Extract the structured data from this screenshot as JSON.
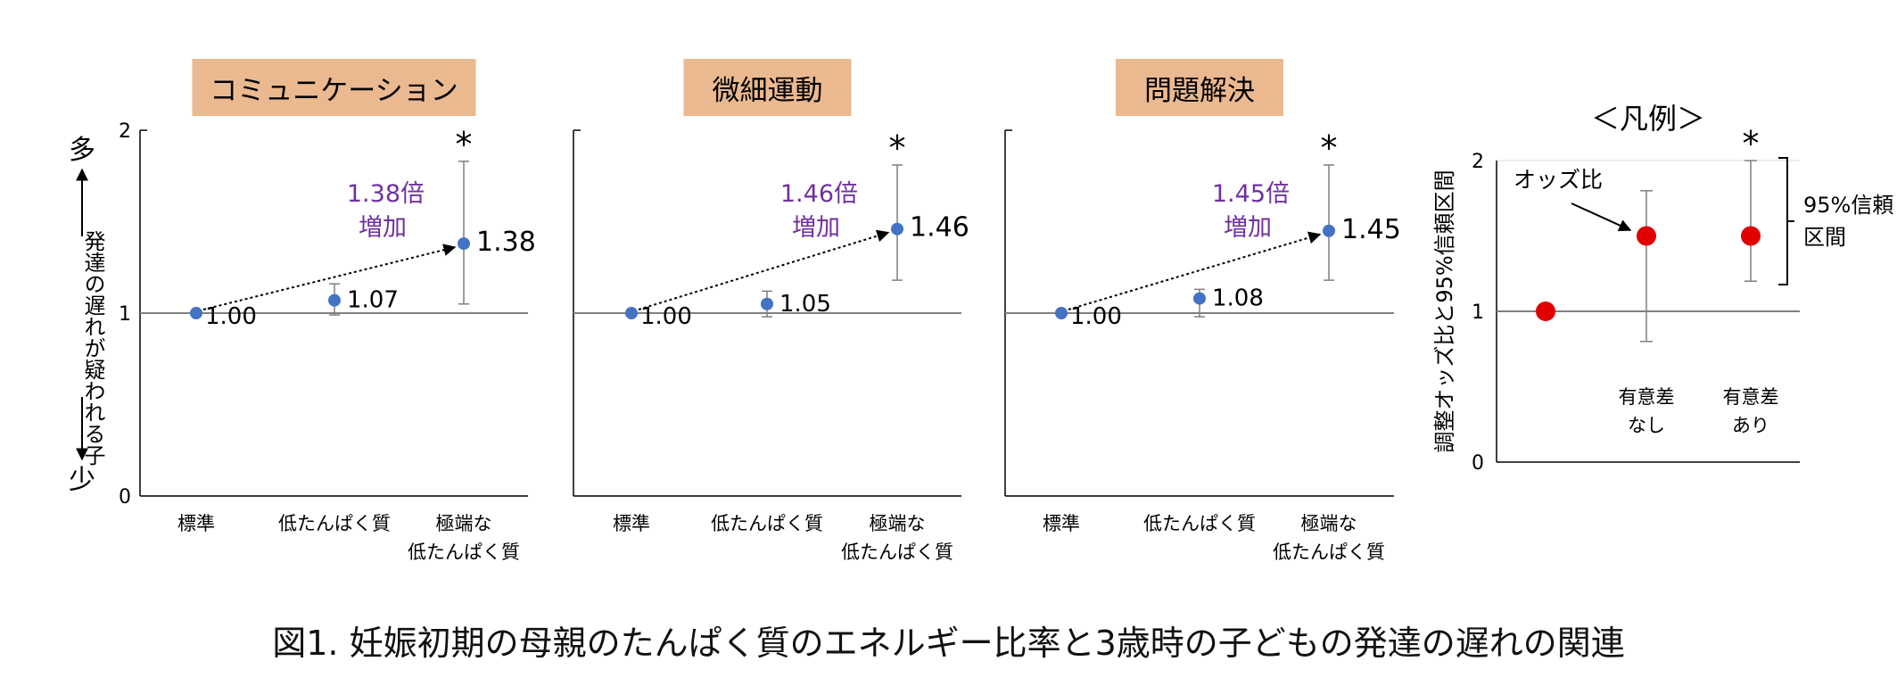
{
  "figure_title": "図1. 妊娠初期の母親のたんぱく質のエネルギー比率と3歳時の子どもの発達の遅れの関連",
  "colors": {
    "title_box": "#ebb98f",
    "point": "#4472c4",
    "annotation": "#7030a0",
    "legend_point": "#e00000",
    "axis": "#000000",
    "ref_line": "#808080",
    "errorbar": "#7f7f7f"
  },
  "y_axis_side": {
    "top_label": "多",
    "bottom_label": "少",
    "middle_label": "発達の遅れが疑われる子"
  },
  "chart_data": [
    {
      "type": "scatter",
      "title": "コミュニケーション",
      "categories": [
        "標準",
        "低たんぱく質",
        "極端な\n低たんぱく質"
      ],
      "values": [
        1.0,
        1.07,
        1.38
      ],
      "ci_upper": [
        null,
        1.16,
        1.83
      ],
      "ci_lower": [
        null,
        0.99,
        1.05
      ],
      "value_labels": [
        "1.00",
        "1.07",
        "1.38"
      ],
      "significance": [
        false,
        false,
        true
      ],
      "annotation": {
        "line1": "1.38倍",
        "line2": "増加"
      },
      "ylim": [
        0,
        2
      ],
      "y_ticks": [
        "0",
        "1",
        "2"
      ],
      "reference_line": 1
    },
    {
      "type": "scatter",
      "title": "微細運動",
      "categories": [
        "標準",
        "低たんぱく質",
        "極端な\n低たんぱく質"
      ],
      "values": [
        1.0,
        1.05,
        1.46
      ],
      "ci_upper": [
        null,
        1.12,
        1.81
      ],
      "ci_lower": [
        null,
        0.98,
        1.18
      ],
      "value_labels": [
        "1.00",
        "1.05",
        "1.46"
      ],
      "significance": [
        false,
        false,
        true
      ],
      "annotation": {
        "line1": "1.46倍",
        "line2": "増加"
      },
      "ylim": [
        0,
        2
      ],
      "y_ticks": [],
      "reference_line": 1
    },
    {
      "type": "scatter",
      "title": "問題解決",
      "categories": [
        "標準",
        "低たんぱく質",
        "極端な\n低たんぱく質"
      ],
      "values": [
        1.0,
        1.08,
        1.45
      ],
      "ci_upper": [
        null,
        1.13,
        1.81
      ],
      "ci_lower": [
        null,
        0.98,
        1.18
      ],
      "value_labels": [
        "1.00",
        "1.08",
        "1.45"
      ],
      "significance": [
        false,
        false,
        true
      ],
      "annotation": {
        "line1": "1.45倍",
        "line2": "増加"
      },
      "ylim": [
        0,
        2
      ],
      "y_ticks": [],
      "reference_line": 1
    },
    {
      "type": "scatter",
      "title": "＜凡例＞",
      "ylabel": "調整オッズ比と95%信頼区間",
      "categories": [
        "",
        "有意差\nなし",
        "有意差\nあり"
      ],
      "values": [
        1.0,
        1.5,
        1.5
      ],
      "ci_upper": [
        null,
        1.8,
        2.0
      ],
      "ci_lower": [
        null,
        0.8,
        1.2
      ],
      "significance": [
        false,
        false,
        true
      ],
      "ylim": [
        0,
        2
      ],
      "y_ticks": [
        "0",
        "1",
        "2"
      ],
      "reference_line": 1,
      "labels": {
        "odds_ratio": "オッズ比",
        "ci_line1": "95%信頼",
        "ci_line2": "区間"
      }
    }
  ]
}
